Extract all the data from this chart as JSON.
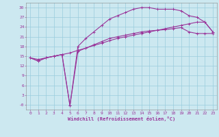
{
  "xlabel": "Windchill (Refroidissement éolien,°C)",
  "bg_color": "#cce8f0",
  "grid_color": "#99ccdd",
  "line_color": "#993399",
  "xlim": [
    -0.5,
    23.5
  ],
  "ylim": [
    -1.5,
    31.5
  ],
  "xticks": [
    0,
    1,
    2,
    3,
    4,
    5,
    6,
    7,
    8,
    9,
    10,
    11,
    12,
    13,
    14,
    15,
    16,
    17,
    18,
    19,
    20,
    21,
    22,
    23
  ],
  "yticks": [
    0,
    3,
    6,
    9,
    12,
    15,
    18,
    21,
    24,
    27,
    30
  ],
  "ytick_labels": [
    "-0",
    "3",
    "6",
    "9",
    "12",
    "15",
    "18",
    "21",
    "24",
    "27",
    "30"
  ],
  "line1_x": [
    0,
    1,
    2,
    3,
    4,
    5,
    6,
    7,
    8,
    9,
    10,
    11,
    12,
    13,
    14,
    15,
    16,
    17,
    18,
    19,
    20,
    21,
    22,
    23
  ],
  "line1_y": [
    14.5,
    13.5,
    14.5,
    15.0,
    15.5,
    -0.3,
    18.0,
    20.5,
    22.5,
    24.5,
    26.5,
    27.5,
    28.5,
    29.5,
    30.0,
    30.0,
    29.5,
    29.5,
    29.5,
    29.0,
    27.5,
    27.0,
    25.5,
    22.5
  ],
  "line2_x": [
    0,
    1,
    2,
    3,
    4,
    5,
    6,
    7,
    8,
    9,
    10,
    11,
    12,
    13,
    14,
    15,
    16,
    17,
    18,
    19,
    20,
    21,
    22,
    23
  ],
  "line2_y": [
    14.5,
    13.5,
    14.5,
    15.0,
    15.5,
    -0.3,
    16.5,
    17.5,
    18.5,
    19.5,
    20.5,
    21.0,
    21.5,
    22.0,
    22.5,
    22.8,
    23.0,
    23.2,
    23.5,
    23.8,
    22.5,
    22.0,
    22.0,
    22.0
  ],
  "line3_x": [
    0,
    1,
    2,
    3,
    4,
    5,
    6,
    7,
    8,
    9,
    10,
    11,
    12,
    13,
    14,
    15,
    16,
    17,
    18,
    19,
    20,
    21,
    22,
    23
  ],
  "line3_y": [
    14.5,
    14.0,
    14.5,
    15.0,
    15.5,
    16.0,
    16.8,
    17.5,
    18.3,
    19.0,
    19.8,
    20.5,
    21.0,
    21.5,
    22.0,
    22.5,
    23.0,
    23.5,
    24.0,
    24.5,
    25.0,
    25.5,
    25.5,
    22.5
  ],
  "figsize": [
    3.2,
    2.0
  ],
  "dpi": 100
}
